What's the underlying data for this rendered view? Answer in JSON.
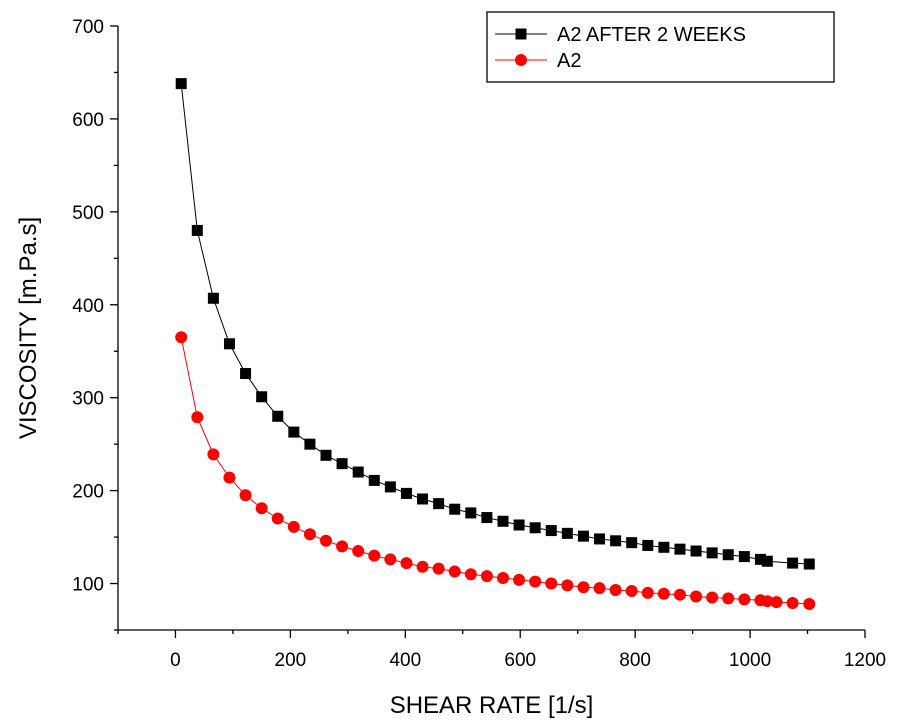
{
  "chart_data": {
    "type": "line",
    "xlabel": "SHEAR RATE [1/s]",
    "ylabel": "VISCOSITY [m.Pa.s]",
    "xlim": [
      -100,
      1200
    ],
    "ylim": [
      50,
      700
    ],
    "x_ticks": [
      0,
      200,
      400,
      600,
      800,
      1000,
      1200
    ],
    "y_ticks": [
      100,
      200,
      300,
      400,
      500,
      600,
      700
    ],
    "x_tick_labels": [
      "0",
      "200",
      "400",
      "600",
      "800",
      "1000",
      "1200"
    ],
    "y_tick_labels": [
      "100",
      "200",
      "300",
      "400",
      "500",
      "600",
      "700"
    ],
    "grid": false,
    "legend_position": "top-right",
    "series": [
      {
        "name": "A2 AFTER 2 WEEKS",
        "color": "#000000",
        "marker": "square",
        "x": [
          10,
          38,
          66,
          94,
          122,
          150,
          178,
          206,
          234,
          262,
          290,
          318,
          346,
          374,
          402,
          430,
          458,
          486,
          514,
          542,
          570,
          598,
          626,
          654,
          682,
          710,
          738,
          766,
          794,
          822,
          850,
          878,
          906,
          934,
          962,
          990,
          1018,
          1030,
          1074,
          1103
        ],
        "y": [
          638,
          480,
          407,
          358,
          326,
          301,
          280,
          263,
          250,
          238,
          229,
          220,
          211,
          204,
          197,
          191,
          186,
          180,
          176,
          171,
          167,
          163,
          160,
          157,
          154,
          151,
          148,
          146,
          144,
          141,
          139,
          137,
          135,
          133,
          131,
          129,
          126,
          124,
          122,
          121
        ]
      },
      {
        "name": "A2",
        "color": "#ff0000",
        "marker": "circle",
        "x": [
          10,
          38,
          66,
          94,
          122,
          150,
          178,
          206,
          234,
          262,
          290,
          318,
          346,
          374,
          402,
          430,
          458,
          486,
          514,
          542,
          570,
          598,
          626,
          654,
          682,
          710,
          738,
          766,
          794,
          822,
          850,
          878,
          906,
          934,
          962,
          990,
          1018,
          1030,
          1046,
          1074,
          1103
        ],
        "y": [
          365,
          279,
          239,
          214,
          195,
          181,
          170,
          161,
          153,
          146,
          140,
          135,
          130,
          126,
          122,
          118,
          116,
          113,
          110,
          108,
          106,
          104,
          102,
          100,
          98,
          96,
          95,
          93,
          92,
          90,
          89,
          88,
          86,
          85,
          84,
          83,
          82,
          81,
          80,
          79,
          78
        ]
      }
    ]
  }
}
